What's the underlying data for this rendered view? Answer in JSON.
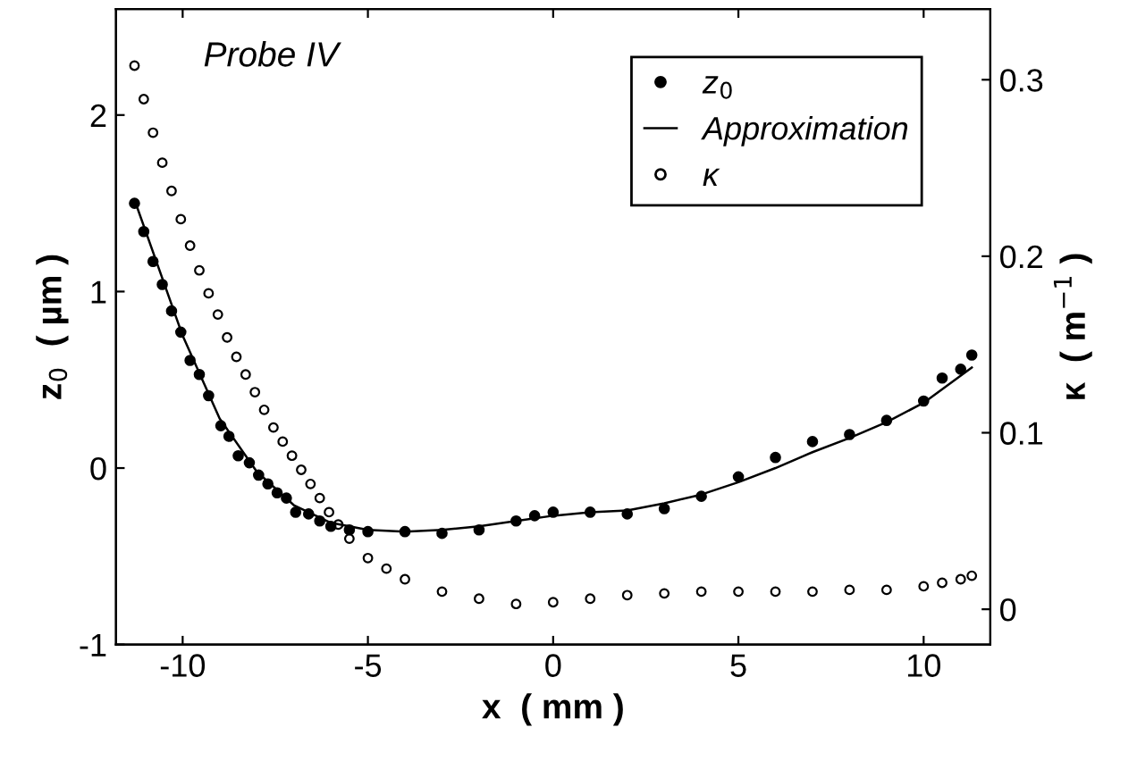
{
  "chart_data": {
    "type": "scatter",
    "xlabel": "x  ( mm )",
    "ylabel": "z$_{0}$  ( µm )",
    "y2label": "κ  ( m$^{−1}$ )",
    "annotations": [
      "Probe IV"
    ],
    "xlim": [
      -11.8,
      11.8
    ],
    "xticks": [
      -10,
      -5,
      0,
      5,
      10
    ],
    "ylim": [
      -1,
      2.6
    ],
    "yticks": [
      -1,
      0,
      1,
      2
    ],
    "y2lim": [
      -0.02,
      0.34
    ],
    "y2ticks": [
      0,
      0.1,
      0.2,
      0.3
    ],
    "grid": false,
    "legend": "top right",
    "series": [
      {
        "name": "z$_{0}$",
        "marker": "circle",
        "color": "#000000",
        "x": [
          -11.3,
          -11.05,
          -10.8,
          -10.55,
          -10.3,
          -10.05,
          -9.8,
          -9.55,
          -9.3,
          -8.97,
          -8.75,
          -8.5,
          -8.2,
          -7.95,
          -7.7,
          -7.45,
          -7.2,
          -6.95,
          -6.6,
          -6.3,
          -6.0,
          -5.5,
          -5,
          -4,
          -3,
          -2,
          -1,
          -0.5,
          0,
          1,
          2,
          3,
          4,
          5,
          6,
          7,
          8,
          9,
          10,
          10.5,
          11,
          11.3
        ],
        "values": [
          1.5,
          1.34,
          1.17,
          1.04,
          0.89,
          0.77,
          0.61,
          0.53,
          0.41,
          0.24,
          0.18,
          0.07,
          0.03,
          -0.04,
          -0.09,
          -0.14,
          -0.17,
          -0.25,
          -0.26,
          -0.3,
          -0.33,
          -0.35,
          -0.36,
          -0.36,
          -0.37,
          -0.35,
          -0.3,
          -0.27,
          -0.25,
          -0.25,
          -0.26,
          -0.23,
          -0.16,
          -0.05,
          0.06,
          0.15,
          0.19,
          0.27,
          0.38,
          0.51,
          0.56,
          0.64
        ]
      },
      {
        "name": "Approximation",
        "type": "line",
        "marker": "none",
        "line_style": "solid",
        "color": "#000000",
        "x": [
          -11.3,
          -10,
          -9,
          -8,
          -7,
          -6,
          -5,
          -4,
          -3,
          -2,
          -1,
          0,
          1,
          2,
          3,
          4,
          5,
          6,
          7,
          8,
          9,
          10,
          11.3
        ],
        "values": [
          1.52,
          0.75,
          0.28,
          -0.02,
          -0.21,
          -0.31,
          -0.35,
          -0.36,
          -0.35,
          -0.33,
          -0.3,
          -0.27,
          -0.25,
          -0.24,
          -0.2,
          -0.15,
          -0.08,
          0.0,
          0.09,
          0.17,
          0.26,
          0.37,
          0.57
        ]
      },
      {
        "name": "κ",
        "marker": "circle",
        "color": "#000000",
        "axis": "y2",
        "x": [
          -11.3,
          -11.05,
          -10.8,
          -10.55,
          -10.3,
          -10.05,
          -9.8,
          -9.55,
          -9.3,
          -9.05,
          -8.8,
          -8.55,
          -8.3,
          -8.05,
          -7.8,
          -7.55,
          -7.3,
          -7.05,
          -6.8,
          -6.55,
          -6.3,
          -6.05,
          -5.8,
          -5.5,
          -5,
          -4.5,
          -4,
          -3,
          -2,
          -1,
          0,
          1,
          2,
          3,
          4,
          5,
          6,
          7,
          8,
          9,
          10,
          10.5,
          11,
          11.3
        ],
        "values": [
          0.308,
          0.289,
          0.27,
          0.253,
          0.237,
          0.221,
          0.206,
          0.192,
          0.179,
          0.167,
          0.154,
          0.143,
          0.133,
          0.123,
          0.113,
          0.103,
          0.095,
          0.087,
          0.079,
          0.071,
          0.063,
          0.055,
          0.048,
          0.04,
          0.029,
          0.023,
          0.017,
          0.01,
          0.006,
          0.003,
          0.004,
          0.006,
          0.008,
          0.009,
          0.01,
          0.01,
          0.01,
          0.01,
          0.011,
          0.011,
          0.013,
          0.015,
          0.017,
          0.019
        ]
      }
    ]
  }
}
